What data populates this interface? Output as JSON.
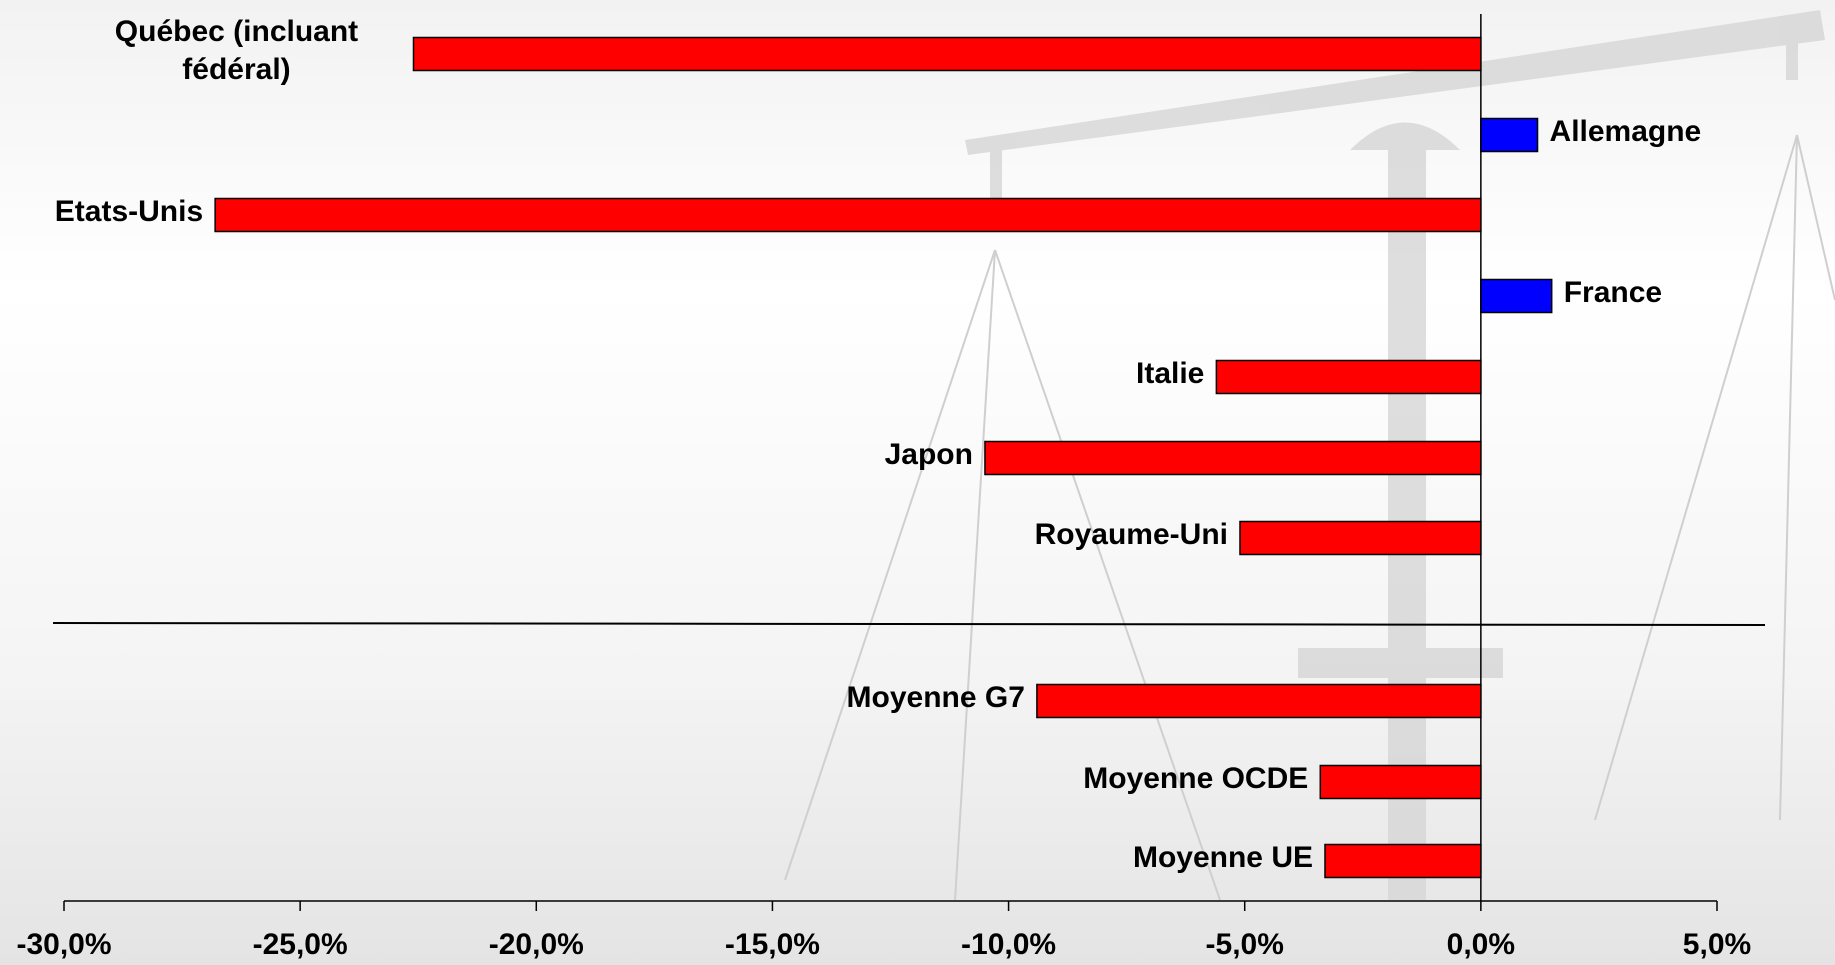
{
  "chart_data": {
    "type": "bar",
    "orientation": "horizontal",
    "categories": [
      "Québec (incluant fédéral)",
      "Allemagne",
      "Etats-Unis",
      "France",
      "Italie",
      "Japon",
      "Royaume-Uni",
      "Moyenne G7",
      "Moyenne OCDE",
      "Moyenne UE"
    ],
    "values": [
      -22.6,
      1.2,
      -26.8,
      1.5,
      -5.6,
      -10.5,
      -5.1,
      -9.4,
      -3.4,
      -3.3
    ],
    "color_negative": "#ff0000",
    "color_positive": "#0000ff",
    "xlim": [
      -30,
      5
    ],
    "xticks": [
      {
        "value": -30,
        "label": "-30,0%"
      },
      {
        "value": -25,
        "label": "-25,0%"
      },
      {
        "value": -20,
        "label": "-20,0%"
      },
      {
        "value": -15,
        "label": "-15,0%"
      },
      {
        "value": -10,
        "label": "-10,0%"
      },
      {
        "value": -5,
        "label": "-5,0%"
      },
      {
        "value": 0,
        "label": "0,0%"
      },
      {
        "value": 5,
        "label": "5,0%"
      }
    ]
  }
}
